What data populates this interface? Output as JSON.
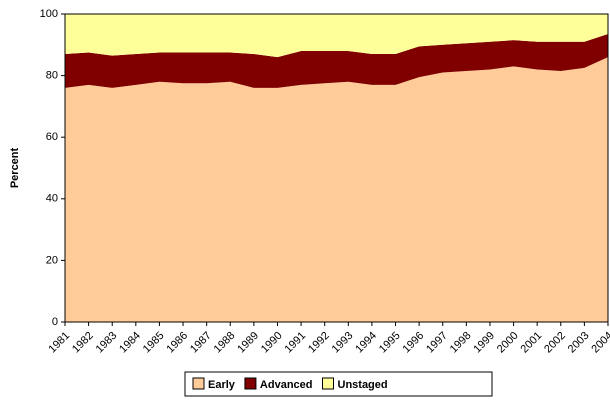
{
  "chart_data": {
    "type": "stacked_area",
    "y_label": "Percent",
    "categories": [
      "1981",
      "1982",
      "1983",
      "1984",
      "1985",
      "1986",
      "1987",
      "1988",
      "1989",
      "1990",
      "1991",
      "1992",
      "1993",
      "1994",
      "1995",
      "1996",
      "1997",
      "1998",
      "1999",
      "2000",
      "2001",
      "2002",
      "2003",
      "2004"
    ],
    "series": [
      {
        "name": "Early",
        "color": "#FFCC99",
        "values": [
          76,
          77,
          76,
          77,
          78,
          77.5,
          77.5,
          78,
          76,
          76,
          77,
          77.5,
          78,
          77,
          77,
          79.5,
          81,
          81.5,
          82,
          83,
          82,
          81.5,
          82.5,
          86
        ]
      },
      {
        "name": "Advanced",
        "color": "#800000",
        "values": [
          11,
          10.5,
          10.5,
          10,
          9.5,
          10,
          10,
          9.5,
          11,
          10,
          11,
          10.5,
          10,
          10,
          10,
          10,
          9,
          9,
          9,
          8.5,
          9,
          9.5,
          8.5,
          7.5
        ]
      },
      {
        "name": "Unstaged",
        "color": "#FFFF99",
        "values": [
          13,
          12.5,
          13.5,
          13,
          12.5,
          12.5,
          12.5,
          12.5,
          13,
          14,
          12,
          12,
          12,
          13,
          13,
          10.5,
          10,
          9.5,
          9,
          8.5,
          9,
          9,
          9,
          6.5
        ]
      }
    ],
    "ylim": [
      0,
      100
    ],
    "yticks": [
      0,
      20,
      40,
      60,
      80,
      100
    ],
    "legend": "bottom"
  }
}
